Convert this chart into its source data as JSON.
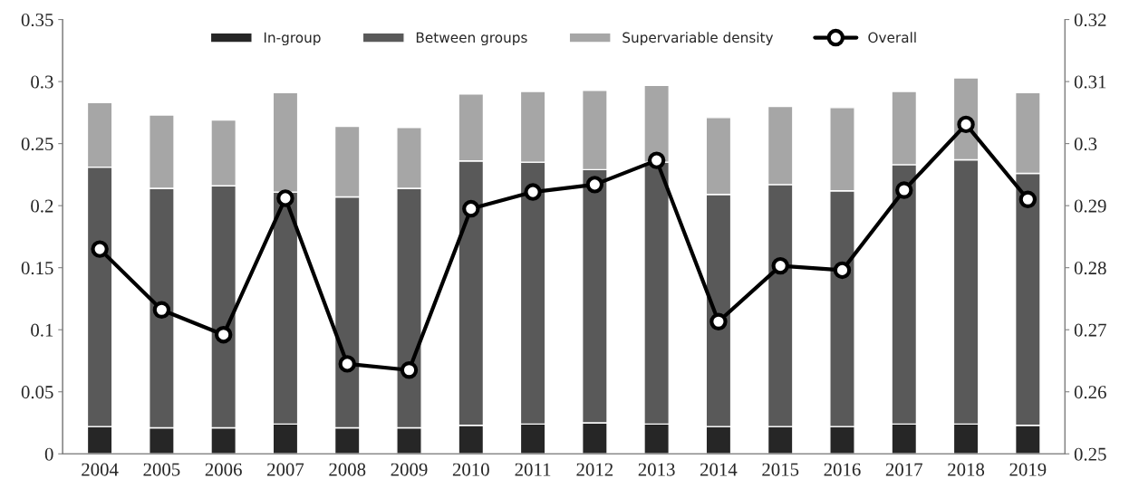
{
  "chart_data": {
    "type": "bar",
    "stacked": true,
    "categories": [
      "2004",
      "2005",
      "2006",
      "2007",
      "2008",
      "2009",
      "2010",
      "2011",
      "2012",
      "2013",
      "2014",
      "2015",
      "2016",
      "2017",
      "2018",
      "2019"
    ],
    "series": [
      {
        "name": "In-group",
        "color": "#262626",
        "values": [
          0.022,
          0.021,
          0.021,
          0.024,
          0.021,
          0.021,
          0.023,
          0.024,
          0.025,
          0.024,
          0.022,
          0.022,
          0.022,
          0.024,
          0.024,
          0.023
        ]
      },
      {
        "name": "Between groups",
        "color": "#595959",
        "values": [
          0.209,
          0.193,
          0.195,
          0.187,
          0.186,
          0.193,
          0.213,
          0.211,
          0.204,
          0.211,
          0.187,
          0.195,
          0.19,
          0.209,
          0.213,
          0.203
        ]
      },
      {
        "name": "Supervariable density",
        "color": "#a6a6a6",
        "values": [
          0.052,
          0.059,
          0.053,
          0.08,
          0.057,
          0.049,
          0.054,
          0.057,
          0.064,
          0.062,
          0.062,
          0.063,
          0.067,
          0.059,
          0.066,
          0.065
        ]
      },
      {
        "name": "Overall",
        "type": "line",
        "axis": "y2",
        "color": "#000000",
        "marker": "circle",
        "line_style": "solid",
        "values": [
          0.283,
          0.2732,
          0.2692,
          0.2912,
          0.2645,
          0.2635,
          0.2895,
          0.2922,
          0.2934,
          0.2973,
          0.2713,
          0.2803,
          0.2796,
          0.2925,
          0.3031,
          0.291
        ]
      }
    ],
    "ylim": [
      0,
      0.35
    ],
    "yticks": [
      {
        "value": 0,
        "label": "0"
      },
      {
        "value": 0.05,
        "label": "0.05"
      },
      {
        "value": 0.1,
        "label": "0.1"
      },
      {
        "value": 0.15,
        "label": "0.15"
      },
      {
        "value": 0.2,
        "label": "0.2"
      },
      {
        "value": 0.25,
        "label": "0.25"
      },
      {
        "value": 0.3,
        "label": "0.3"
      },
      {
        "value": 0.35,
        "label": "0.35"
      }
    ],
    "y2lim": [
      0.25,
      0.32
    ],
    "y2ticks": [
      {
        "value": 0.25,
        "label": "0.25"
      },
      {
        "value": 0.26,
        "label": "0.26"
      },
      {
        "value": 0.27,
        "label": "0.27"
      },
      {
        "value": 0.28,
        "label": "0.28"
      },
      {
        "value": 0.29,
        "label": "0.29"
      },
      {
        "value": 0.3,
        "label": "0.3"
      },
      {
        "value": 0.31,
        "label": "0.31"
      },
      {
        "value": 0.32,
        "label": "0.32"
      }
    ],
    "grid": false,
    "legend": "top"
  }
}
